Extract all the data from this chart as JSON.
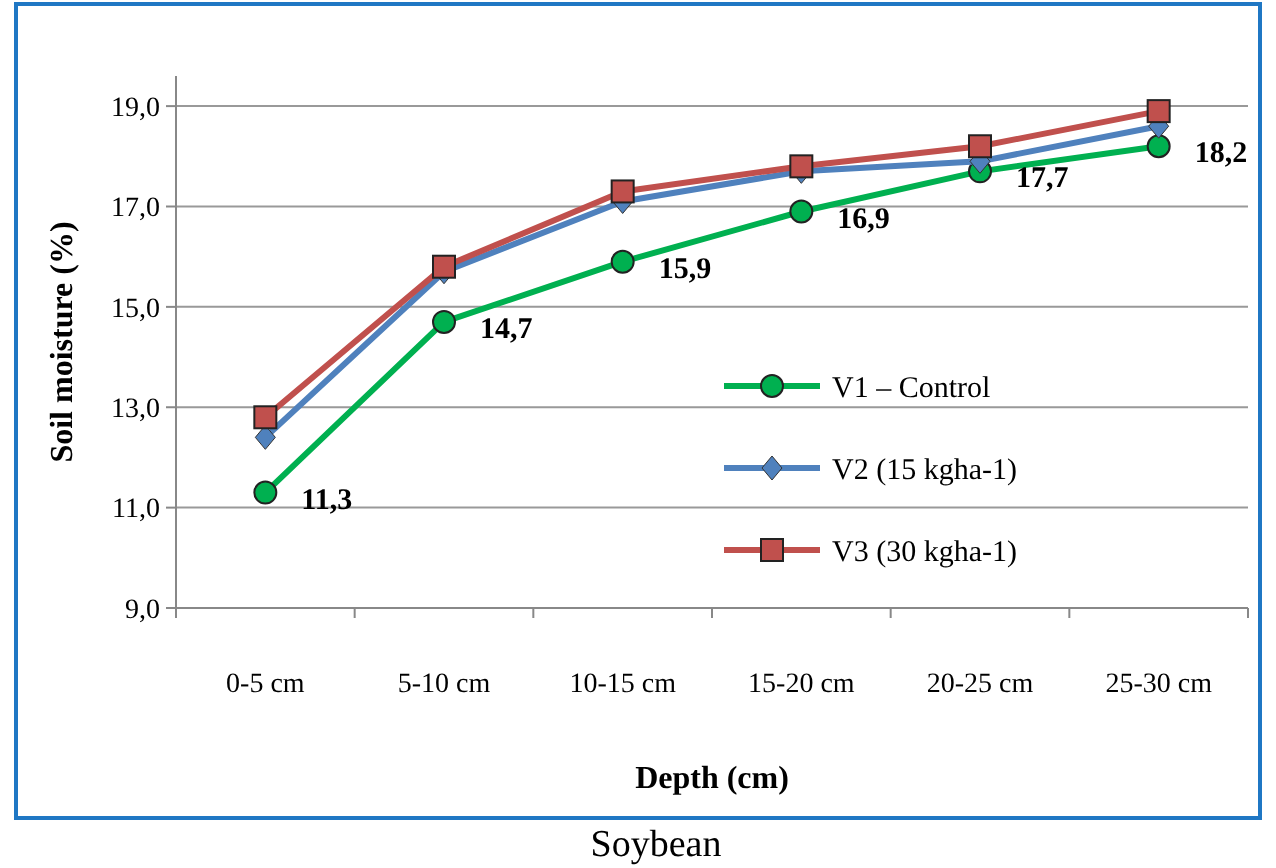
{
  "chart_data": {
    "type": "line",
    "title": "Soybean",
    "xlabel": "Depth (cm)",
    "ylabel": "Soil moisture (%)",
    "categories": [
      "0-5 cm",
      "5-10 cm",
      "10-15 cm",
      "15-20 cm",
      "20-25 cm",
      "25-30 cm"
    ],
    "series": [
      {
        "name": "V1 – Control",
        "color": "#00b050",
        "marker": "circle",
        "values": [
          11.3,
          14.7,
          15.9,
          16.9,
          17.7,
          18.2
        ],
        "value_labels": [
          "11,3",
          "14,7",
          "15,9",
          "16,9",
          "17,7",
          "18,2"
        ]
      },
      {
        "name": "V2 (15 kgha-1)",
        "color": "#4f81bd",
        "marker": "diamond",
        "values": [
          12.4,
          15.7,
          17.1,
          17.7,
          17.9,
          18.6
        ]
      },
      {
        "name": "V3 (30 kgha-1)",
        "color": "#c0504d",
        "marker": "square",
        "values": [
          12.8,
          15.8,
          17.3,
          17.8,
          18.2,
          18.9
        ]
      }
    ],
    "ylim": [
      9,
      19.6
    ],
    "yticks": [
      {
        "value": 9,
        "label": "9,0"
      },
      {
        "value": 11,
        "label": "11,0"
      },
      {
        "value": 13,
        "label": "13,0"
      },
      {
        "value": 15,
        "label": "15,0"
      },
      {
        "value": 17,
        "label": "17,0"
      },
      {
        "value": 19,
        "label": "19,0"
      }
    ],
    "grid": "y",
    "legend": "bottom right"
  }
}
